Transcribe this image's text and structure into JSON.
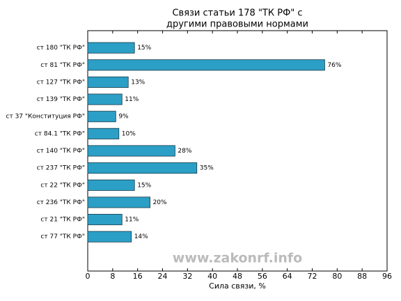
{
  "chart_data": {
    "type": "barh",
    "title": [
      "Связи статьи 178 \"ТК РФ\" с",
      "другими правовыми нормами"
    ],
    "xlabel": "Сила связи, %",
    "watermark": "www.zakonrf.info",
    "categories": [
      "ст 180 \"ТК РФ\"",
      "ст 81 \"ТК РФ\"",
      "ст 127 \"ТК РФ\"",
      "ст 139 \"ТК РФ\"",
      "ст 37 \"Конституция РФ\"",
      "ст 84.1 \"ТК РФ\"",
      "ст 140 \"ТК РФ\"",
      "ст 237 \"ТК РФ\"",
      "ст 22 \"ТК РФ\"",
      "ст 236 \"ТК РФ\"",
      "ст 21 \"ТК РФ\"",
      "ст 77 \"ТК РФ\""
    ],
    "values": [
      15,
      76,
      13,
      11,
      9,
      10,
      28,
      35,
      15,
      20,
      11,
      14
    ],
    "value_labels": [
      "15%",
      "76%",
      "13%",
      "11%",
      "9%",
      "10%",
      "28%",
      "35%",
      "15%",
      "20%",
      "11%",
      "14%"
    ],
    "color": "#2b9fc6",
    "xlim": [
      0,
      96
    ],
    "xticks": [
      0,
      8,
      16,
      24,
      32,
      40,
      48,
      56,
      64,
      72,
      80,
      88,
      96
    ]
  }
}
